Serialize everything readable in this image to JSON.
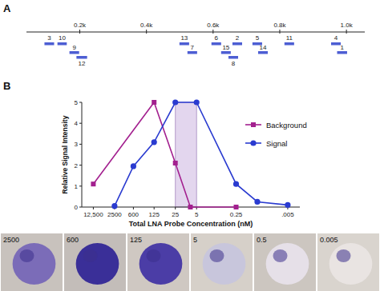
{
  "chart_data": [
    {
      "type": "interval",
      "title": "A",
      "categories": [
        "3",
        "10",
        "9",
        "12",
        "13",
        "7",
        "6",
        "15",
        "2",
        "8",
        "5",
        "14",
        "11",
        "4",
        "1"
      ],
      "starts": [
        94,
        133,
        169,
        190,
        499,
        523,
        595,
        624,
        658,
        646,
        718,
        735,
        814,
        954,
        972
      ],
      "ends": [
        123,
        161,
        198,
        222,
        528,
        552,
        624,
        653,
        687,
        675,
        747,
        764,
        843,
        983,
        1002
      ],
      "color": "#4d5ed3",
      "xlim": [
        40,
        1055
      ],
      "xticks": [
        {
          "value": 200,
          "label": "0.2k"
        },
        {
          "value": 400,
          "label": "0.4k"
        },
        {
          "value": 600,
          "label": "0.6k"
        },
        {
          "value": 800,
          "label": "0.8k"
        },
        {
          "value": 1000,
          "label": "1.0k"
        }
      ]
    },
    {
      "type": "line",
      "title": "B",
      "x_label": "Total LNA Probe Concentration (nM)",
      "y_label": "Relative Signal Intensity",
      "log": "x",
      "xlim": [
        30000,
        0.002
      ],
      "xticks": [
        {
          "value": 12500,
          "label": "12,500"
        },
        2500,
        600,
        125,
        25,
        5,
        0.25,
        {
          "value": 0.005,
          "label": ".005"
        }
      ],
      "ylim": [
        0,
        5
      ],
      "yticks": [
        0,
        1,
        2,
        3,
        4,
        5
      ],
      "legend": "upper right",
      "highlight_range": [
        25,
        5
      ],
      "series": [
        {
          "name": "Background",
          "color": "#a3208f",
          "marker": "square",
          "x": [
            12500,
            125,
            25,
            8,
            0.25
          ],
          "values": [
            1.1,
            5,
            2.1,
            0,
            0
          ]
        },
        {
          "name": "Signal",
          "color": "#2a3bd0",
          "marker": "circle",
          "x": [
            2500,
            600,
            125,
            25,
            5,
            0.25,
            0.05,
            0.005
          ],
          "values": [
            0.05,
            1.95,
            3.1,
            5,
            5,
            1.1,
            0.25,
            0.1
          ]
        }
      ]
    }
  ],
  "photo_labels": [
    "2500",
    "600",
    "125",
    "5",
    "0.5",
    "0.005"
  ]
}
